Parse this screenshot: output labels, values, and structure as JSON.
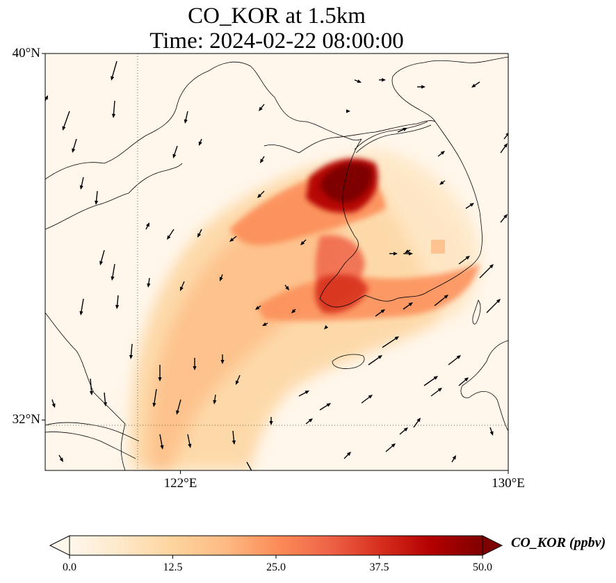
{
  "title": {
    "line1": "CO_KOR at 1.5km",
    "line2": "Time: 2024-02-22 08:00:00"
  },
  "map": {
    "extent_lon": [
      118.7,
      130.0
    ],
    "extent_lat": [
      30.9,
      40.0
    ],
    "lat_ticks": [
      {
        "value": 40,
        "label": "40°N"
      },
      {
        "value": 32,
        "label": "32°N"
      }
    ],
    "lon_ticks": [
      {
        "value": 122,
        "label": "122°E"
      },
      {
        "value": 130,
        "label": "130°E"
      }
    ],
    "gridlines": "dotted"
  },
  "colorbar": {
    "label": "CO_KOR (ppbv)",
    "min": 0.0,
    "max": 50.0,
    "extend": "both",
    "colormap": "OrRd",
    "ticks": [
      "0.0",
      "12.5",
      "25.0",
      "37.5",
      "50.0"
    ],
    "colors": [
      "#fff7ec",
      "#fee8c8",
      "#fdd49e",
      "#fdbb84",
      "#fc8d59",
      "#ef6548",
      "#d7301f",
      "#b30000",
      "#7f0000"
    ]
  }
}
